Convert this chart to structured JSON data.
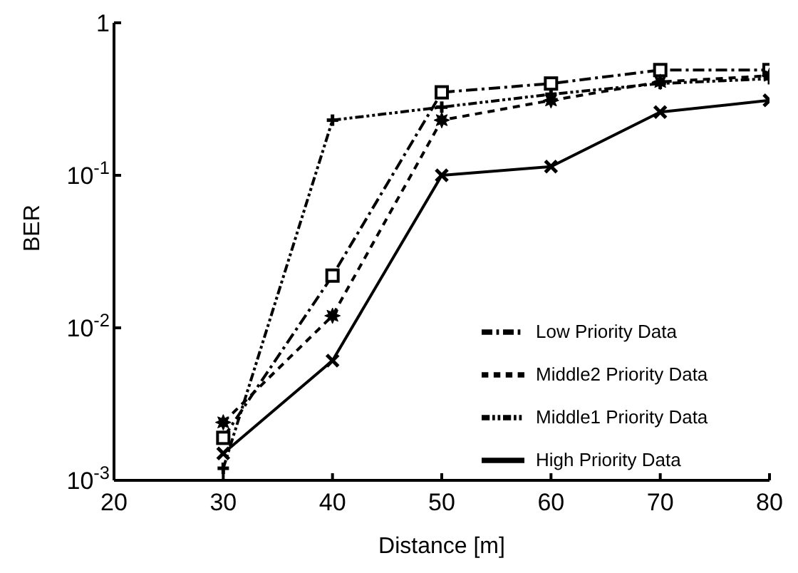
{
  "chart_data": {
    "type": "line",
    "xlabel": "Distance [m]",
    "ylabel": "BER",
    "x": [
      30,
      40,
      50,
      60,
      70,
      80
    ],
    "series": [
      {
        "name": "Low Priority Data",
        "color": "#000000",
        "marker": "square",
        "line_style": "dashdot",
        "values": [
          0.0019,
          0.022,
          0.35,
          0.4,
          0.49,
          0.49
        ]
      },
      {
        "name": "Middle2 Priority Data",
        "color": "#000000",
        "marker": "star",
        "line_style": "dashed",
        "values": [
          0.0024,
          0.012,
          0.23,
          0.31,
          0.41,
          0.45
        ]
      },
      {
        "name": "Middle1 Priority Data",
        "color": "#000000",
        "marker": "plus",
        "line_style": "dashdotdot",
        "values": [
          0.0012,
          0.23,
          0.28,
          0.34,
          0.4,
          0.43
        ]
      },
      {
        "name": "High Priority Data",
        "color": "#000000",
        "marker": "cross",
        "line_style": "solid",
        "values": [
          0.0015,
          0.0061,
          0.1,
          0.114,
          0.26,
          0.31
        ]
      }
    ],
    "xlim": [
      20,
      80
    ],
    "xticks": [
      20,
      30,
      40,
      50,
      60,
      70,
      80
    ],
    "ylim": [
      0.001,
      1
    ],
    "yticks": [
      {
        "value": 0.001,
        "label": "10$^{-3}$"
      },
      {
        "value": 0.01,
        "label": "10$^{-2}$"
      },
      {
        "value": 0.1,
        "label": "10$^{-1}$"
      },
      1
    ],
    "log": "y",
    "grid": false,
    "legend": "bottom right"
  }
}
